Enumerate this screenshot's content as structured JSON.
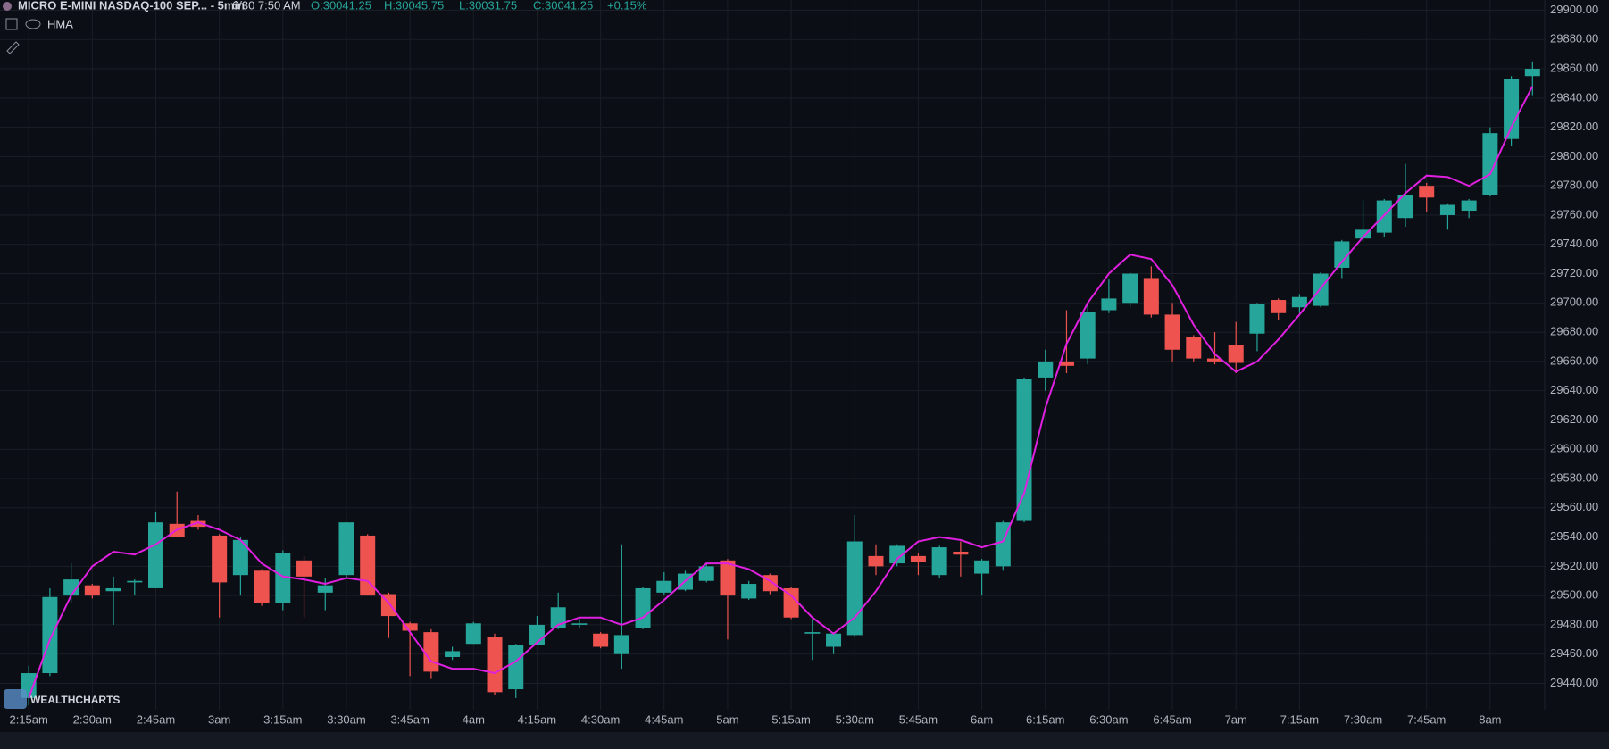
{
  "header": {
    "symbol": "MICRO E-MINI NASDAQ-100 SEP... - 5min",
    "time": "6/30 7:50 AM",
    "open": "O:30041.25",
    "high": "H:30045.75",
    "low": "L:30031.75",
    "close": "C:30041.25",
    "change": "+0.15%",
    "logo": "WEALTHCHARTS"
  },
  "chart_data": {
    "type": "candlestick",
    "up_color": "#26a69a",
    "down_color": "#ef5350",
    "grid": true,
    "categories": [
      "2:15am",
      null,
      null,
      "2:30am",
      null,
      null,
      "2:45am",
      null,
      null,
      "3am",
      null,
      null,
      "3:15am",
      null,
      null,
      "3:30am",
      null,
      null,
      "3:45am",
      null,
      null,
      "4am",
      null,
      null,
      "4:15am",
      null,
      null,
      "4:30am",
      null,
      null,
      "4:45am",
      null,
      null,
      "5am",
      null,
      null,
      "5:15am",
      null,
      null,
      "5:30am",
      null,
      null,
      "5:45am",
      null,
      null,
      "6am",
      null,
      null,
      "6:15am",
      null,
      null,
      "6:30am",
      null,
      null,
      "6:45am",
      null,
      null,
      "7am",
      null,
      null,
      "7:15am",
      null,
      null,
      "7:30am",
      null,
      null,
      "7:45am",
      null,
      null,
      "8am",
      null,
      null
    ],
    "open": [
      29430,
      29447,
      29500,
      29507,
      29503,
      29509,
      29505,
      29549,
      29551,
      29541,
      29514,
      29517,
      29495,
      29524,
      29502,
      29514,
      29541,
      29501,
      29481,
      29475,
      29458,
      29467,
      29472,
      29436,
      29466,
      29478,
      29480,
      29474,
      29460,
      29478,
      29502,
      29504,
      29510,
      29524,
      29498,
      29514,
      29505,
      29474,
      29465,
      29473,
      29527,
      29522,
      29527,
      29514,
      29530,
      29515,
      29520,
      29551,
      29649,
      29660,
      29662,
      29695,
      29700,
      29717,
      29692,
      29677,
      29662,
      29671,
      29679,
      29702,
      29697,
      29698,
      29724,
      29744,
      29748,
      29758,
      29780,
      29760,
      29763,
      29774,
      29812,
      29855
    ],
    "high": [
      29452,
      29505,
      29522,
      29508,
      29513,
      29511,
      29557,
      29571,
      29555,
      29542,
      29540,
      29518,
      29531,
      29527,
      29512,
      29550,
      29542,
      29502,
      29482,
      29477,
      29465,
      29482,
      29474,
      29467,
      29486,
      29502,
      29484,
      29475,
      29535,
      29506,
      29516,
      29517,
      29522,
      29525,
      29510,
      29515,
      29506,
      29484,
      29475,
      29555,
      29535,
      29535,
      29529,
      29534,
      29537,
      29525,
      29551,
      29649,
      29668,
      29695,
      29700,
      29716,
      29721,
      29725,
      29700,
      29678,
      29680,
      29687,
      29700,
      29703,
      29706,
      29721,
      29743,
      29770,
      29771,
      29795,
      29782,
      29768,
      29771,
      29820,
      29855,
      29865
    ],
    "low": [
      29425,
      29445,
      29495,
      29498,
      29480,
      29500,
      29505,
      29540,
      29545,
      29485,
      29500,
      29493,
      29490,
      29485,
      29490,
      29512,
      29500,
      29471,
      29445,
      29443,
      29456,
      29467,
      29432,
      29430,
      29466,
      29477,
      29478,
      29464,
      29450,
      29477,
      29500,
      29503,
      29509,
      29470,
      29497,
      29501,
      29484,
      29456,
      29460,
      29472,
      29514,
      29520,
      29514,
      29512,
      29513,
      29500,
      29517,
      29550,
      29640,
      29652,
      29658,
      29693,
      29697,
      29690,
      29660,
      29660,
      29658,
      29652,
      29667,
      29688,
      29693,
      29697,
      29717,
      29742,
      29745,
      29752,
      29762,
      29750,
      29758,
      29773,
      29807,
      29842
    ],
    "close": [
      29447,
      29499,
      29511,
      29500,
      29505,
      29510,
      29550,
      29540,
      29547,
      29509,
      29538,
      29495,
      29529,
      29513,
      29507,
      29550,
      29500,
      29486,
      29476,
      29448,
      29462,
      29481,
      29434,
      29466,
      29480,
      29492,
      29481,
      29465,
      29473,
      29505,
      29510,
      29515,
      29520,
      29500,
      29508,
      29503,
      29485,
      29475,
      29474,
      29537,
      29520,
      29534,
      29523,
      29533,
      29528,
      29524,
      29550,
      29648,
      29660,
      29657,
      29694,
      29703,
      29720,
      29692,
      29668,
      29662,
      29660,
      29659,
      29699,
      29693,
      29704,
      29720,
      29742,
      29750,
      29770,
      29774,
      29772,
      29767,
      29770,
      29816,
      29853,
      29860
    ],
    "series": [
      {
        "name": "HMA",
        "color": "#e020e0",
        "values": [
          29430,
          29470,
          29500,
          29520,
          29530,
          29528,
          29535,
          29545,
          29550,
          29545,
          29538,
          29522,
          29513,
          29511,
          29508,
          29512,
          29510,
          29495,
          29475,
          29455,
          29450,
          29450,
          29447,
          29455,
          29468,
          29480,
          29485,
          29485,
          29480,
          29485,
          29497,
          29510,
          29522,
          29522,
          29518,
          29510,
          29500,
          29485,
          29474,
          29485,
          29503,
          29525,
          29537,
          29540,
          29538,
          29533,
          29537,
          29570,
          29628,
          29672,
          29700,
          29720,
          29733,
          29730,
          29712,
          29685,
          29665,
          29653,
          29660,
          29675,
          29692,
          29710,
          29728,
          29745,
          29760,
          29775,
          29787,
          29786,
          29780,
          29788,
          29820,
          29848
        ]
      }
    ],
    "ylim": [
      29422,
      29907
    ],
    "yticks": [
      {
        "value": 29440,
        "label": "29440.00"
      },
      {
        "value": 29460,
        "label": "29460.00"
      },
      {
        "value": 29480,
        "label": "29480.00"
      },
      {
        "value": 29500,
        "label": "29500.00"
      },
      {
        "value": 29520,
        "label": "29520.00"
      },
      {
        "value": 29540,
        "label": "29540.00"
      },
      {
        "value": 29560,
        "label": "29560.00"
      },
      {
        "value": 29580,
        "label": "29580.00"
      },
      {
        "value": 29600,
        "label": "29600.00"
      },
      {
        "value": 29620,
        "label": "29620.00"
      },
      {
        "value": 29640,
        "label": "29640.00"
      },
      {
        "value": 29660,
        "label": "29660.00"
      },
      {
        "value": 29680,
        "label": "29680.00"
      },
      {
        "value": 29700,
        "label": "29700.00"
      },
      {
        "value": 29720,
        "label": "29720.00"
      },
      {
        "value": 29740,
        "label": "29740.00"
      },
      {
        "value": 29760,
        "label": "29760.00"
      },
      {
        "value": 29780,
        "label": "29780.00"
      },
      {
        "value": 29800,
        "label": "29800.00"
      },
      {
        "value": 29820,
        "label": "29820.00"
      },
      {
        "value": 29840,
        "label": "29840.00"
      },
      {
        "value": 29860,
        "label": "29860.00"
      },
      {
        "value": 29880,
        "label": "29880.00"
      },
      {
        "value": 29900,
        "label": "29900.00"
      }
    ]
  }
}
